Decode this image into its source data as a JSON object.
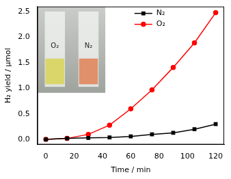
{
  "chart_data": {
    "type": "line",
    "x_label": "Time / min",
    "y_label": "H₂ yield / μmol",
    "x": [
      0,
      15,
      30,
      45,
      60,
      75,
      90,
      105,
      120
    ],
    "series": [
      {
        "name": "N₂",
        "color": "#000000",
        "marker": "square",
        "values": [
          0,
          0.02,
          0.03,
          0.04,
          0.06,
          0.1,
          0.13,
          0.2,
          0.3
        ]
      },
      {
        "name": "O₂",
        "color": "#ff0000",
        "marker": "circle",
        "values": [
          0,
          0.02,
          0.1,
          0.28,
          0.6,
          0.97,
          1.41,
          1.89,
          2.48
        ]
      }
    ],
    "xlim": [
      -6,
      126
    ],
    "xticks": [
      0,
      20,
      40,
      60,
      80,
      100,
      120
    ],
    "ylim": [
      -0.1,
      2.6
    ],
    "yticks": [
      {
        "value": 0,
        "label": "0.0"
      },
      {
        "value": 0.5,
        "label": "0.5"
      },
      {
        "value": 1,
        "label": "1.0"
      },
      {
        "value": 1.5,
        "label": "1.5"
      },
      {
        "value": 2,
        "label": "2.0"
      },
      {
        "value": 2.5,
        "label": "2.5"
      }
    ],
    "grid": false,
    "legend": "upper center",
    "annotations": [
      "O₂",
      "N₂"
    ]
  }
}
